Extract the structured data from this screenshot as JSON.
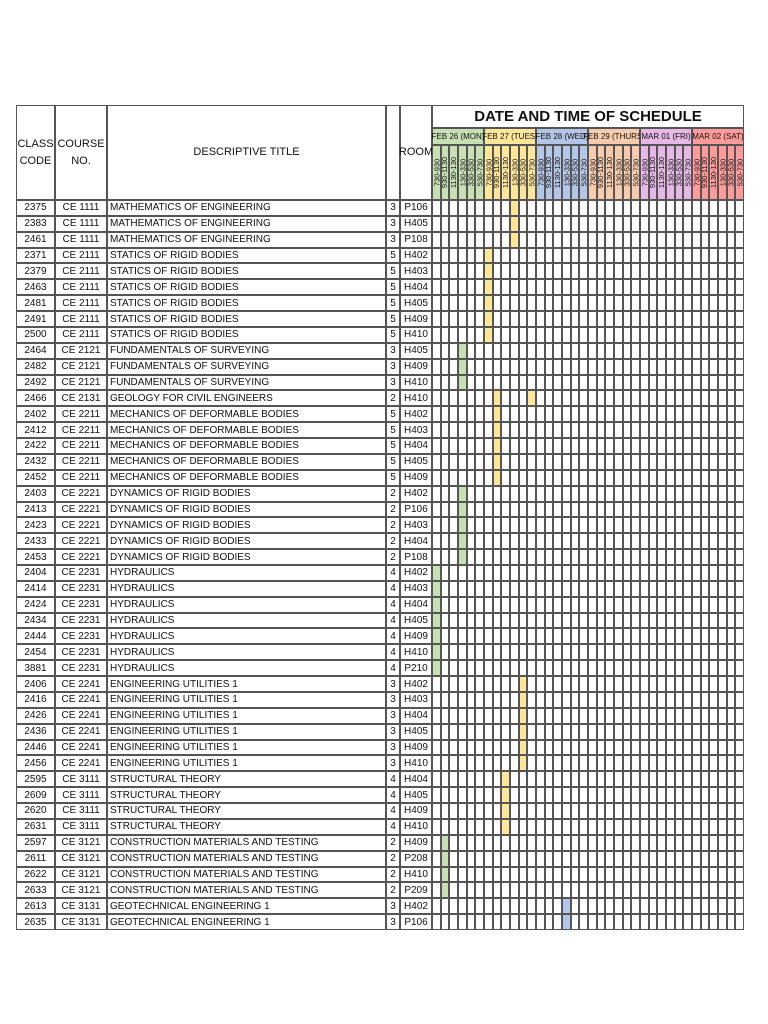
{
  "header": {
    "class_code": "CLASS CODE",
    "course_no": "COURSE NO.",
    "title": "DESCRIPTIVE TITLE",
    "room": "ROOM",
    "schedule": "DATE AND TIME OF SCHEDULE"
  },
  "days": [
    {
      "label": "FEB 26 (MON)",
      "color": "#c6e0b4",
      "slots": [
        "730-930",
        "930-1130",
        "1130-130",
        "130-330",
        "330-530",
        "530-730"
      ]
    },
    {
      "label": "FEB 27 (TUES)",
      "color": "#ffe699",
      "slots": [
        "730-930",
        "930-1130",
        "1130-130",
        "130-330",
        "330-530",
        "530-730"
      ]
    },
    {
      "label": "FEB 28 (WED)",
      "color": "#b4c6e7",
      "slots": [
        "730-930",
        "930-1130",
        "1130-130",
        "130-330",
        "330-530",
        "530-730"
      ]
    },
    {
      "label": "FEB 29 (THURS)",
      "color": "#f8cbad",
      "slots": [
        "730-930",
        "930-1130",
        "1130-130",
        "130-330",
        "330-530",
        "530-730"
      ]
    },
    {
      "label": "MAR 01 (FRI)",
      "color": "#e6b8e6",
      "slots": [
        "730-930",
        "930-1130",
        "1130-130",
        "130-330",
        "330-530",
        "530-730"
      ]
    },
    {
      "label": "MAR 02 (SAT)",
      "color": "#ff9b9b",
      "slots": [
        "730-930",
        "930-1130",
        "1130-130",
        "130-330",
        "330-530",
        "530-730"
      ]
    }
  ],
  "rows": [
    {
      "class_code": "2375",
      "course_no": "CE 1111",
      "title": "MATHEMATICS OF ENGINEERING",
      "units": "3",
      "room": "P106",
      "slots": [
        9
      ]
    },
    {
      "class_code": "2383",
      "course_no": "CE 1111",
      "title": "MATHEMATICS OF ENGINEERING",
      "units": "3",
      "room": "H405",
      "slots": [
        9
      ]
    },
    {
      "class_code": "2461",
      "course_no": "CE 1111",
      "title": "MATHEMATICS OF ENGINEERING",
      "units": "3",
      "room": "P108",
      "slots": [
        9
      ]
    },
    {
      "class_code": "2371",
      "course_no": "CE 2111",
      "title": "STATICS OF RIGID BODIES",
      "units": "5",
      "room": "H402",
      "slots": [
        6
      ]
    },
    {
      "class_code": "2379",
      "course_no": "CE 2111",
      "title": "STATICS OF RIGID BODIES",
      "units": "5",
      "room": "H403",
      "slots": [
        6
      ]
    },
    {
      "class_code": "2463",
      "course_no": "CE 2111",
      "title": "STATICS OF RIGID BODIES",
      "units": "5",
      "room": "H404",
      "slots": [
        6
      ]
    },
    {
      "class_code": "2481",
      "course_no": "CE 2111",
      "title": "STATICS OF RIGID BODIES",
      "units": "5",
      "room": "H405",
      "slots": [
        6
      ]
    },
    {
      "class_code": "2491",
      "course_no": "CE 2111",
      "title": "STATICS OF RIGID BODIES",
      "units": "5",
      "room": "H409",
      "slots": [
        6
      ]
    },
    {
      "class_code": "2500",
      "course_no": "CE 2111",
      "title": "STATICS OF RIGID BODIES",
      "units": "5",
      "room": "H410",
      "slots": [
        6
      ]
    },
    {
      "class_code": "2464",
      "course_no": "CE 2121",
      "title": "FUNDAMENTALS OF SURVEYING",
      "units": "3",
      "room": "H405",
      "slots": [
        3
      ]
    },
    {
      "class_code": "2482",
      "course_no": "CE 2121",
      "title": "FUNDAMENTALS OF SURVEYING",
      "units": "3",
      "room": "H409",
      "slots": [
        3
      ]
    },
    {
      "class_code": "2492",
      "course_no": "CE 2121",
      "title": "FUNDAMENTALS OF SURVEYING",
      "units": "3",
      "room": "H410",
      "slots": [
        3
      ]
    },
    {
      "class_code": "2466",
      "course_no": "CE 2131",
      "title": "GEOLOGY FOR CIVIL ENGINEERS",
      "units": "2",
      "room": "H410",
      "slots": [
        7,
        11
      ]
    },
    {
      "class_code": "2402",
      "course_no": "CE 2211",
      "title": "MECHANICS OF DEFORMABLE BODIES",
      "units": "5",
      "room": "H402",
      "slots": [
        7
      ]
    },
    {
      "class_code": "2412",
      "course_no": "CE 2211",
      "title": "MECHANICS OF DEFORMABLE BODIES",
      "units": "5",
      "room": "H403",
      "slots": [
        7
      ]
    },
    {
      "class_code": "2422",
      "course_no": "CE 2211",
      "title": "MECHANICS OF DEFORMABLE BODIES",
      "units": "5",
      "room": "H404",
      "slots": [
        7
      ]
    },
    {
      "class_code": "2432",
      "course_no": "CE 2211",
      "title": "MECHANICS OF DEFORMABLE BODIES",
      "units": "5",
      "room": "H405",
      "slots": [
        7
      ]
    },
    {
      "class_code": "2452",
      "course_no": "CE 2211",
      "title": "MECHANICS OF DEFORMABLE BODIES",
      "units": "5",
      "room": "H409",
      "slots": [
        7
      ]
    },
    {
      "class_code": "2403",
      "course_no": "CE 2221",
      "title": "DYNAMICS OF RIGID BODIES",
      "units": "2",
      "room": "H402",
      "slots": [
        3
      ]
    },
    {
      "class_code": "2413",
      "course_no": "CE 2221",
      "title": "DYNAMICS OF RIGID BODIES",
      "units": "2",
      "room": "P106",
      "slots": [
        3
      ]
    },
    {
      "class_code": "2423",
      "course_no": "CE 2221",
      "title": "DYNAMICS OF RIGID BODIES",
      "units": "2",
      "room": "H403",
      "slots": [
        3
      ]
    },
    {
      "class_code": "2433",
      "course_no": "CE 2221",
      "title": "DYNAMICS OF RIGID BODIES",
      "units": "2",
      "room": "H404",
      "slots": [
        3
      ]
    },
    {
      "class_code": "2453",
      "course_no": "CE 2221",
      "title": "DYNAMICS OF RIGID BODIES",
      "units": "2",
      "room": "P108",
      "slots": [
        3
      ]
    },
    {
      "class_code": "2404",
      "course_no": "CE 2231",
      "title": "HYDRAULICS",
      "units": "4",
      "room": "H402",
      "slots": [
        0
      ]
    },
    {
      "class_code": "2414",
      "course_no": "CE 2231",
      "title": "HYDRAULICS",
      "units": "4",
      "room": "H403",
      "slots": [
        0
      ]
    },
    {
      "class_code": "2424",
      "course_no": "CE 2231",
      "title": "HYDRAULICS",
      "units": "4",
      "room": "H404",
      "slots": [
        0
      ]
    },
    {
      "class_code": "2434",
      "course_no": "CE 2231",
      "title": "HYDRAULICS",
      "units": "4",
      "room": "H405",
      "slots": [
        0
      ]
    },
    {
      "class_code": "2444",
      "course_no": "CE 2231",
      "title": "HYDRAULICS",
      "units": "4",
      "room": "H409",
      "slots": [
        0
      ]
    },
    {
      "class_code": "2454",
      "course_no": "CE 2231",
      "title": "HYDRAULICS",
      "units": "4",
      "room": "H410",
      "slots": [
        0
      ]
    },
    {
      "class_code": "3881",
      "course_no": "CE 2231",
      "title": "HYDRAULICS",
      "units": "4",
      "room": "P210",
      "slots": [
        0
      ]
    },
    {
      "class_code": "2406",
      "course_no": "CE 2241",
      "title": "ENGINEERING UTILITIES 1",
      "units": "3",
      "room": "H402",
      "slots": [
        10
      ]
    },
    {
      "class_code": "2416",
      "course_no": "CE 2241",
      "title": "ENGINEERING UTILITIES 1",
      "units": "3",
      "room": "H403",
      "slots": [
        10
      ]
    },
    {
      "class_code": "2426",
      "course_no": "CE 2241",
      "title": "ENGINEERING UTILITIES 1",
      "units": "3",
      "room": "H404",
      "slots": [
        10
      ]
    },
    {
      "class_code": "2436",
      "course_no": "CE 2241",
      "title": "ENGINEERING UTILITIES 1",
      "units": "3",
      "room": "H405",
      "slots": [
        10
      ]
    },
    {
      "class_code": "2446",
      "course_no": "CE 2241",
      "title": "ENGINEERING UTILITIES 1",
      "units": "3",
      "room": "H409",
      "slots": [
        10
      ]
    },
    {
      "class_code": "2456",
      "course_no": "CE 2241",
      "title": "ENGINEERING UTILITIES 1",
      "units": "3",
      "room": "H410",
      "slots": [
        10
      ]
    },
    {
      "class_code": "2595",
      "course_no": "CE 3111",
      "title": "STRUCTURAL THEORY",
      "units": "4",
      "room": "H404",
      "slots": [
        8
      ]
    },
    {
      "class_code": "2609",
      "course_no": "CE 3111",
      "title": "STRUCTURAL THEORY",
      "units": "4",
      "room": "H405",
      "slots": [
        8
      ]
    },
    {
      "class_code": "2620",
      "course_no": "CE 3111",
      "title": "STRUCTURAL THEORY",
      "units": "4",
      "room": "H409",
      "slots": [
        8
      ]
    },
    {
      "class_code": "2631",
      "course_no": "CE 3111",
      "title": "STRUCTURAL THEORY",
      "units": "4",
      "room": "H410",
      "slots": [
        8
      ]
    },
    {
      "class_code": "2597",
      "course_no": "CE 3121",
      "title": "CONSTRUCTION MATERIALS AND TESTING",
      "units": "2",
      "room": "H409",
      "slots": [
        1
      ]
    },
    {
      "class_code": "2611",
      "course_no": "CE 3121",
      "title": "CONSTRUCTION MATERIALS AND TESTING",
      "units": "2",
      "room": "P208",
      "slots": [
        1
      ]
    },
    {
      "class_code": "2622",
      "course_no": "CE 3121",
      "title": "CONSTRUCTION MATERIALS AND TESTING",
      "units": "2",
      "room": "H410",
      "slots": [
        1
      ]
    },
    {
      "class_code": "2633",
      "course_no": "CE 3121",
      "title": "CONSTRUCTION MATERIALS AND TESTING",
      "units": "2",
      "room": "P209",
      "slots": [
        1
      ]
    },
    {
      "class_code": "2613",
      "course_no": "CE 3131",
      "title": "GEOTECHNICAL ENGINEERING 1",
      "units": "3",
      "room": "H402",
      "slots": [
        15
      ]
    },
    {
      "class_code": "2635",
      "course_no": "CE 3131",
      "title": "GEOTECHNICAL ENGINEERING 1",
      "units": "3",
      "room": "P106",
      "slots": [
        15
      ]
    }
  ]
}
